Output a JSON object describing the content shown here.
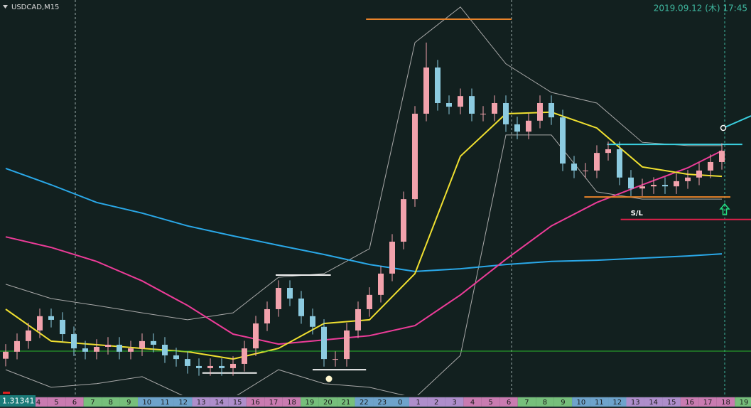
{
  "chart_data": {
    "type": "candlestick",
    "title": "USDCAD,M15",
    "timestamp": "2019.09.12 (木) 17:45",
    "price_label": 1.31341,
    "ylim": [
      1.312,
      1.325
    ],
    "xlim": [
      -0.5,
      65.5625
    ],
    "up_color": "#f2a2ac",
    "down_color": "#8ccbe0",
    "open": [
      1.3132,
      1.31343,
      1.31378,
      1.31413,
      1.3146,
      1.31448,
      1.31401,
      1.31354,
      1.31343,
      1.31359,
      1.31366,
      1.31343,
      1.31354,
      1.31378,
      1.31366,
      1.31331,
      1.31319,
      1.31296,
      1.31289,
      1.31296,
      1.31289,
      1.31303,
      1.31354,
      1.31436,
      1.31483,
      1.31553,
      1.31518,
      1.3146,
      1.31425,
      1.31319,
      1.31319,
      1.31413,
      1.31483,
      1.3153,
      1.316,
      1.31705,
      1.31845,
      1.32126,
      1.32278,
      1.32161,
      1.32149,
      1.32184,
      1.32126,
      1.32126,
      1.32161,
      1.32091,
      1.32067,
      1.32103,
      1.32161,
      1.32114,
      1.31962,
      1.31939,
      1.31939,
      1.31997,
      1.32009,
      1.31916,
      1.3188,
      1.31887,
      1.31892,
      1.31887,
      1.31904,
      1.31916,
      1.31939,
      1.31967
    ],
    "high": [
      1.31368,
      1.31403,
      1.31438,
      1.31485,
      1.31485,
      1.31473,
      1.31426,
      1.31379,
      1.31384,
      1.31391,
      1.31391,
      1.31379,
      1.31403,
      1.31403,
      1.31391,
      1.31356,
      1.31344,
      1.31321,
      1.31321,
      1.31321,
      1.31328,
      1.31379,
      1.31461,
      1.31508,
      1.31578,
      1.31578,
      1.31543,
      1.31485,
      1.3145,
      1.31344,
      1.31438,
      1.31508,
      1.31555,
      1.31625,
      1.3173,
      1.3187,
      1.32151,
      1.3236,
      1.32303,
      1.32186,
      1.32209,
      1.32209,
      1.32151,
      1.32186,
      1.32186,
      1.32116,
      1.32128,
      1.32186,
      1.32186,
      1.32139,
      1.31987,
      1.31964,
      1.32022,
      1.32034,
      1.32034,
      1.31941,
      1.31912,
      1.31917,
      1.31917,
      1.31929,
      1.31941,
      1.31964,
      1.31992,
      1.32029
    ],
    "low": [
      1.31295,
      1.31318,
      1.31353,
      1.31388,
      1.31423,
      1.31376,
      1.31329,
      1.31318,
      1.31318,
      1.31334,
      1.31318,
      1.31318,
      1.31329,
      1.31341,
      1.31306,
      1.31294,
      1.31271,
      1.31264,
      1.31264,
      1.31264,
      1.31264,
      1.31278,
      1.31329,
      1.31411,
      1.31458,
      1.31493,
      1.31435,
      1.314,
      1.31294,
      1.31294,
      1.31294,
      1.31388,
      1.31458,
      1.31505,
      1.31575,
      1.3168,
      1.3182,
      1.32101,
      1.32136,
      1.32124,
      1.32124,
      1.32101,
      1.32101,
      1.32101,
      1.32066,
      1.32042,
      1.32042,
      1.32078,
      1.32089,
      1.31937,
      1.31914,
      1.31914,
      1.31914,
      1.31972,
      1.31891,
      1.31855,
      1.31855,
      1.31862,
      1.31862,
      1.31862,
      1.31879,
      1.31891,
      1.31914,
      1.31942
    ],
    "close": [
      1.31343,
      1.31378,
      1.31413,
      1.3146,
      1.31448,
      1.31401,
      1.31354,
      1.31343,
      1.31359,
      1.31366,
      1.31343,
      1.31354,
      1.31378,
      1.31366,
      1.31331,
      1.31319,
      1.31296,
      1.31289,
      1.31296,
      1.31289,
      1.31303,
      1.31354,
      1.31436,
      1.31483,
      1.31553,
      1.31518,
      1.3146,
      1.31425,
      1.31319,
      1.31319,
      1.31413,
      1.31483,
      1.3153,
      1.316,
      1.31705,
      1.31845,
      1.32126,
      1.32278,
      1.32161,
      1.32149,
      1.32184,
      1.32126,
      1.32126,
      1.32161,
      1.32091,
      1.32067,
      1.32103,
      1.32161,
      1.32114,
      1.31962,
      1.31939,
      1.31939,
      1.31997,
      1.32009,
      1.31916,
      1.3188,
      1.31887,
      1.31892,
      1.31887,
      1.31904,
      1.31916,
      1.31939,
      1.31967,
      1.32004
    ],
    "series": [
      {
        "color": "#a9a9a9",
        "x": [
          0,
          4,
          8,
          12,
          16,
          20,
          24,
          28,
          32,
          36,
          40,
          44,
          48,
          52,
          56,
          60,
          63
        ],
        "values": [
          1.31565,
          1.31518,
          1.31495,
          1.31471,
          1.31448,
          1.31471,
          1.31588,
          1.316,
          1.31682,
          1.3236,
          1.32477,
          1.3229,
          1.32196,
          1.32161,
          1.32032,
          1.32021,
          1.32021
        ]
      },
      {
        "color": "#a9a9a9",
        "x": [
          0,
          4,
          8,
          12,
          16,
          20,
          24,
          28,
          32,
          36,
          40,
          44,
          48,
          52,
          56,
          60,
          63
        ],
        "values": [
          1.31284,
          1.31226,
          1.31238,
          1.31261,
          1.31191,
          1.31191,
          1.31284,
          1.31238,
          1.31226,
          1.31191,
          1.31331,
          1.32056,
          1.32056,
          1.31869,
          1.31845,
          1.31845,
          1.31845
        ]
      },
      {
        "color": "#2aa8e8",
        "x": [
          0,
          4,
          8,
          12,
          16,
          20,
          24,
          28,
          32,
          36,
          40,
          44,
          48,
          52,
          56,
          60,
          63
        ],
        "values": [
          1.31946,
          1.31892,
          1.31834,
          1.31799,
          1.31757,
          1.31724,
          1.31693,
          1.31663,
          1.3163,
          1.31607,
          1.31616,
          1.3163,
          1.3164,
          1.31644,
          1.31651,
          1.31658,
          1.31665
        ]
      },
      {
        "color": "#ec3c98",
        "x": [
          0,
          4,
          8,
          12,
          16,
          20,
          24,
          28,
          32,
          36,
          40,
          44,
          48,
          52,
          56,
          60,
          63
        ],
        "values": [
          1.31721,
          1.31686,
          1.3164,
          1.31576,
          1.31495,
          1.31401,
          1.31368,
          1.31382,
          1.31396,
          1.31429,
          1.3153,
          1.31647,
          1.31757,
          1.31834,
          1.31892,
          1.31948,
          1.32004
        ]
      },
      {
        "color": "#f0e030",
        "x": [
          0,
          4,
          8,
          12,
          16,
          20,
          24,
          28,
          32,
          36,
          40,
          44,
          48,
          52,
          56,
          60,
          63
        ],
        "values": [
          1.31483,
          1.31378,
          1.31366,
          1.31354,
          1.31343,
          1.31319,
          1.31354,
          1.31436,
          1.31448,
          1.316,
          1.31986,
          1.32126,
          1.32131,
          1.32079,
          1.31951,
          1.31927,
          1.3192
        ]
      }
    ],
    "levels": [
      {
        "value": 1.32437,
        "from": 31.7,
        "to": 44.5,
        "color": "#e8832a"
      },
      {
        "value": 1.31595,
        "from": 23.75,
        "to": 28.6,
        "color": "#f0f0f0"
      },
      {
        "value": 1.31273,
        "from": 17.3,
        "to": 22.1,
        "color": "#f0f0f0"
      },
      {
        "value": 1.31284,
        "from": 27,
        "to": 31.7,
        "color": "#f0f0f0"
      },
      {
        "value": 1.32025,
        "from": 52.9,
        "to": 64.8,
        "color": "#3ad0e0"
      },
      {
        "value": 1.31852,
        "from": 50.9,
        "to": 63.75,
        "color": "#e8832a"
      },
      {
        "value": 1.31778,
        "from": 54.1,
        "to": 65.5625,
        "color": "#e0204a",
        "label": "S/L"
      },
      {
        "value": 1.31345,
        "from": -0.5,
        "to": 65.5625,
        "color": "#2bb52b"
      }
    ],
    "time_axis": [
      "4",
      "5",
      "6",
      "7",
      "8",
      "9",
      "10",
      "11",
      "12",
      "13",
      "14",
      "15",
      "16",
      "17",
      "18",
      "19",
      "20",
      "21",
      "22",
      "23",
      "0",
      "1",
      "2",
      "3",
      "4",
      "5",
      "6",
      "7",
      "8",
      "9",
      "10",
      "11",
      "12",
      "13",
      "14",
      "15",
      "16",
      "17",
      "18",
      "19"
    ]
  }
}
